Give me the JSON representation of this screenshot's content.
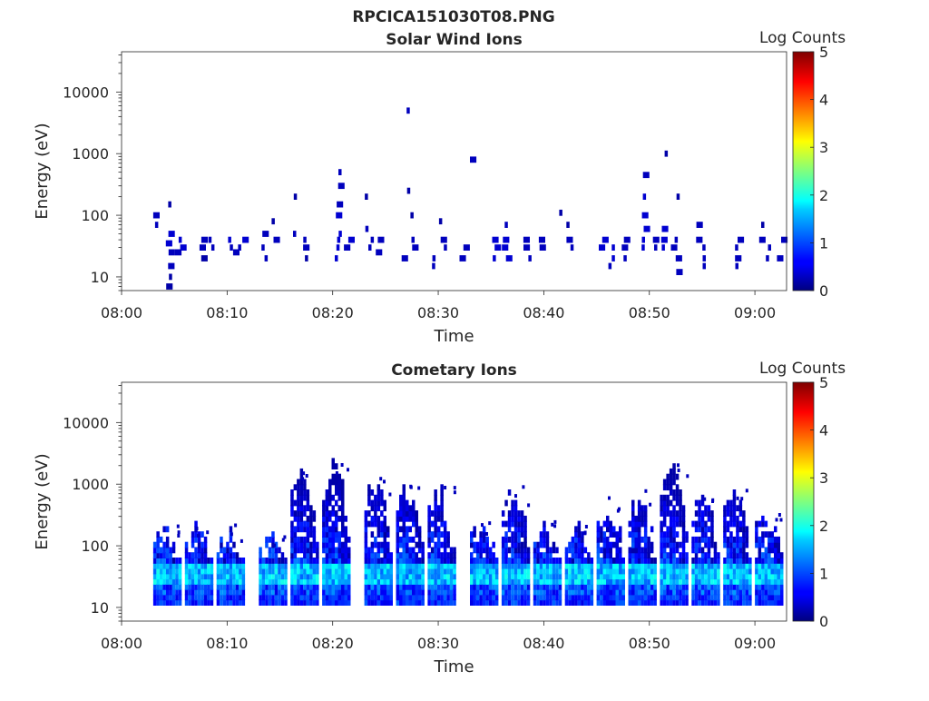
{
  "figure_title": "RPCICA151030T08.PNG",
  "colorbar": {
    "label": "Log Counts",
    "ticks": [
      "0",
      "1",
      "2",
      "3",
      "4",
      "5"
    ],
    "range": [
      0,
      5
    ]
  },
  "chart_data": [
    {
      "type": "heatmap",
      "title": "Solar Wind Ions",
      "xlabel": "Time",
      "ylabel": "Energy (eV)",
      "xticks": [
        "08:00",
        "08:10",
        "08:20",
        "08:30",
        "08:40",
        "08:50",
        "09:00"
      ],
      "yticks": [
        "10",
        "100",
        "1000",
        "10000"
      ],
      "xlim": [
        "08:00",
        "09:03"
      ],
      "ylim": [
        6,
        45000
      ],
      "yscale": "log",
      "note_values": "Log counts (0-5) at time (HH:MM) and energy (eV)",
      "cells": [
        [
          "08:03",
          100,
          0.3
        ],
        [
          "08:03",
          70,
          0.3
        ],
        [
          "08:04",
          50,
          0.4
        ],
        [
          "08:04",
          35,
          0.4
        ],
        [
          "08:04",
          25,
          0.3
        ],
        [
          "08:04",
          15,
          0.3
        ],
        [
          "08:04",
          10,
          0.2
        ],
        [
          "08:04",
          7,
          0.2
        ],
        [
          "08:04",
          150,
          0.2
        ],
        [
          "08:05",
          40,
          0.4
        ],
        [
          "08:05",
          30,
          0.4
        ],
        [
          "08:05",
          25,
          0.3
        ],
        [
          "08:07",
          40,
          0.3
        ],
        [
          "08:07",
          30,
          0.3
        ],
        [
          "08:07",
          20,
          0.2
        ],
        [
          "08:08",
          40,
          0.3
        ],
        [
          "08:08",
          30,
          0.3
        ],
        [
          "08:10",
          40,
          0.4
        ],
        [
          "08:10",
          30,
          0.3
        ],
        [
          "08:10",
          25,
          0.3
        ],
        [
          "08:11",
          40,
          0.4
        ],
        [
          "08:11",
          30,
          0.3
        ],
        [
          "08:13",
          50,
          0.3
        ],
        [
          "08:13",
          30,
          0.3
        ],
        [
          "08:13",
          20,
          0.3
        ],
        [
          "08:14",
          80,
          0.2
        ],
        [
          "08:14",
          40,
          0.3
        ],
        [
          "08:16",
          200,
          0.2
        ],
        [
          "08:16",
          50,
          0.3
        ],
        [
          "08:17",
          40,
          0.3
        ],
        [
          "08:17",
          30,
          0.3
        ],
        [
          "08:17",
          20,
          0.2
        ],
        [
          "08:20",
          500,
          0.3
        ],
        [
          "08:20",
          300,
          0.3
        ],
        [
          "08:20",
          150,
          0.3
        ],
        [
          "08:20",
          100,
          0.4
        ],
        [
          "08:20",
          50,
          0.4
        ],
        [
          "08:20",
          40,
          0.4
        ],
        [
          "08:20",
          30,
          0.4
        ],
        [
          "08:20",
          20,
          0.4
        ],
        [
          "08:21",
          40,
          0.4
        ],
        [
          "08:21",
          30,
          0.3
        ],
        [
          "08:23",
          200,
          0.2
        ],
        [
          "08:23",
          60,
          0.3
        ],
        [
          "08:23",
          40,
          0.3
        ],
        [
          "08:23",
          30,
          0.3
        ],
        [
          "08:24",
          40,
          0.3
        ],
        [
          "08:24",
          25,
          0.3
        ],
        [
          "08:26",
          20,
          0.3
        ],
        [
          "08:27",
          30,
          0.3
        ],
        [
          "08:27",
          40,
          0.3
        ],
        [
          "08:27",
          5000,
          0.3
        ],
        [
          "08:27",
          250,
          0.2
        ],
        [
          "08:27",
          100,
          0.2
        ],
        [
          "08:29",
          20,
          0.3
        ],
        [
          "08:29",
          15,
          0.3
        ],
        [
          "08:30",
          30,
          0.3
        ],
        [
          "08:30",
          40,
          0.3
        ],
        [
          "08:30",
          80,
          0.2
        ],
        [
          "08:33",
          800,
          0.3
        ],
        [
          "08:32",
          30,
          0.3
        ],
        [
          "08:32",
          20,
          0.3
        ],
        [
          "08:35",
          40,
          0.4
        ],
        [
          "08:35",
          30,
          0.4
        ],
        [
          "08:35",
          20,
          0.4
        ],
        [
          "08:36",
          40,
          0.4
        ],
        [
          "08:36",
          30,
          0.4
        ],
        [
          "08:36",
          20,
          0.4
        ],
        [
          "08:36",
          70,
          0.3
        ],
        [
          "08:38",
          40,
          0.3
        ],
        [
          "08:38",
          30,
          0.3
        ],
        [
          "08:38",
          20,
          0.3
        ],
        [
          "08:39",
          40,
          0.3
        ],
        [
          "08:39",
          30,
          0.3
        ],
        [
          "08:41",
          110,
          0.2
        ],
        [
          "08:42",
          40,
          0.3
        ],
        [
          "08:42",
          30,
          0.3
        ],
        [
          "08:42",
          70,
          0.2
        ],
        [
          "08:45",
          40,
          0.4
        ],
        [
          "08:45",
          30,
          0.4
        ],
        [
          "08:46",
          30,
          0.4
        ],
        [
          "08:46",
          20,
          0.4
        ],
        [
          "08:46",
          15,
          0.3
        ],
        [
          "08:47",
          40,
          0.3
        ],
        [
          "08:47",
          30,
          0.3
        ],
        [
          "08:47",
          20,
          0.3
        ],
        [
          "08:49",
          200,
          0.4
        ],
        [
          "08:49",
          100,
          0.4
        ],
        [
          "08:49",
          60,
          0.4
        ],
        [
          "08:49",
          40,
          0.4
        ],
        [
          "08:49",
          30,
          0.4
        ],
        [
          "08:49",
          450,
          0.3
        ],
        [
          "08:50",
          40,
          0.3
        ],
        [
          "08:50",
          30,
          0.3
        ],
        [
          "08:51",
          1000,
          0.2
        ],
        [
          "08:51",
          60,
          0.4
        ],
        [
          "08:51",
          40,
          0.4
        ],
        [
          "08:51",
          30,
          0.4
        ],
        [
          "08:52",
          40,
          0.3
        ],
        [
          "08:52",
          30,
          0.3
        ],
        [
          "08:52",
          20,
          0.3
        ],
        [
          "08:52",
          12,
          0.3
        ],
        [
          "08:52",
          200,
          0.2
        ],
        [
          "08:54",
          70,
          0.3
        ],
        [
          "08:54",
          40,
          0.3
        ],
        [
          "08:55",
          30,
          0.3
        ],
        [
          "08:55",
          20,
          0.3
        ],
        [
          "08:55",
          15,
          0.3
        ],
        [
          "08:58",
          40,
          0.3
        ],
        [
          "08:58",
          30,
          0.3
        ],
        [
          "08:58",
          20,
          0.3
        ],
        [
          "08:58",
          15,
          0.3
        ],
        [
          "09:00",
          70,
          0.2
        ],
        [
          "09:00",
          40,
          0.3
        ],
        [
          "09:01",
          30,
          0.3
        ],
        [
          "09:01",
          20,
          0.3
        ],
        [
          "09:02",
          40,
          0.3
        ],
        [
          "09:02",
          20,
          0.3
        ]
      ]
    },
    {
      "type": "heatmap",
      "title": "Cometary Ions",
      "xlabel": "Time",
      "ylabel": "Energy (eV)",
      "xticks": [
        "08:00",
        "08:10",
        "08:20",
        "08:30",
        "08:40",
        "08:50",
        "09:00"
      ],
      "yticks": [
        "10",
        "100",
        "1000",
        "10000"
      ],
      "xlim": [
        "08:00",
        "09:03"
      ],
      "ylim": [
        6,
        45000
      ],
      "yscale": "log",
      "note_values": "Repeating spectrogram bursts; listed as burst start times",
      "bursts": [
        {
          "t": "08:03",
          "top": 250
        },
        {
          "t": "08:06",
          "top": 260
        },
        {
          "t": "08:09",
          "top": 230
        },
        {
          "t": "08:13",
          "top": 180
        },
        {
          "t": "08:16",
          "top": 1700
        },
        {
          "t": "08:19",
          "top": 3000
        },
        {
          "t": "08:23",
          "top": 1300
        },
        {
          "t": "08:26",
          "top": 1100
        },
        {
          "t": "08:29",
          "top": 900
        },
        {
          "t": "08:33",
          "top": 300
        },
        {
          "t": "08:36",
          "top": 900
        },
        {
          "t": "08:39",
          "top": 250
        },
        {
          "t": "08:42",
          "top": 250
        },
        {
          "t": "08:45",
          "top": 600
        },
        {
          "t": "08:48",
          "top": 800
        },
        {
          "t": "08:51",
          "top": 2200
        },
        {
          "t": "08:54",
          "top": 700
        },
        {
          "t": "08:57",
          "top": 800
        },
        {
          "t": "09:00",
          "top": 400
        }
      ]
    }
  ]
}
